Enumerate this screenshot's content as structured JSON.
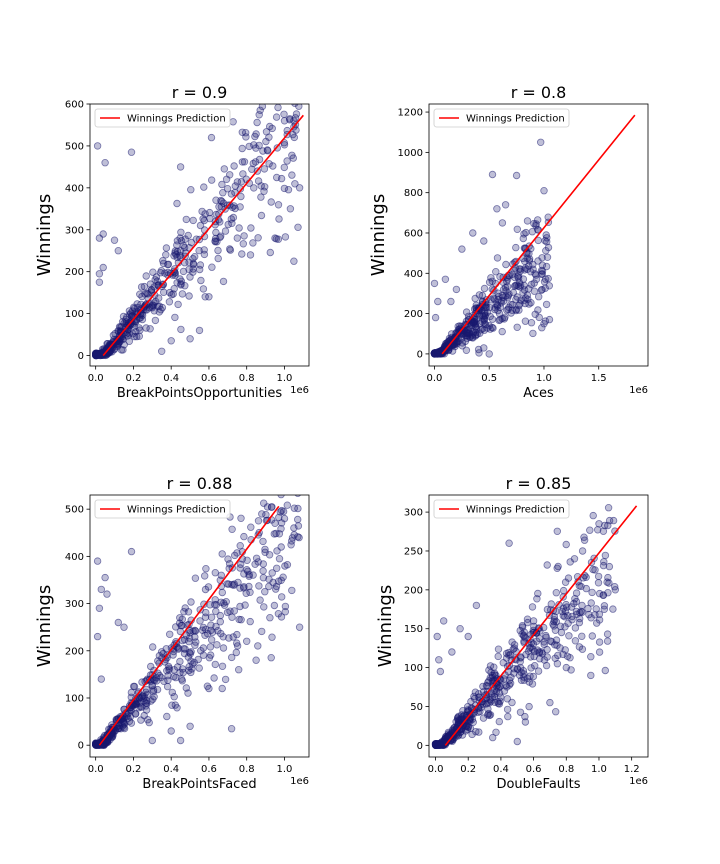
{
  "chart_data": [
    {
      "type": "scatter",
      "title": "r = 0.9",
      "xlabel": "BreakPointsOpportunities",
      "ylabel": "Winnings",
      "x_offset_label": "1e6",
      "xlim": [
        -0.03,
        1.13
      ],
      "ylim": [
        -25,
        600
      ],
      "xticks": [
        0.0,
        0.2,
        0.4,
        0.6,
        0.8,
        1.0
      ],
      "yticks": [
        0,
        100,
        200,
        300,
        400,
        500,
        600
      ],
      "xtick_labels": [
        "0.0",
        "0.2",
        "0.4",
        "0.6",
        "0.8",
        "1.0"
      ],
      "ytick_labels": [
        "0",
        "100",
        "200",
        "300",
        "400",
        "500",
        "600"
      ],
      "grid": false,
      "legend": {
        "position": "upper-left",
        "entries": [
          "Winnings Prediction"
        ]
      },
      "series": [
        {
          "name": "Winnings Prediction",
          "kind": "line",
          "color": "#ff0000",
          "x": [
            0.04,
            1.1
          ],
          "y": [
            0,
            573
          ]
        },
        {
          "kind": "scatter",
          "color": "#191970",
          "slope": 540,
          "intercept": -21.6,
          "noise": 0.22,
          "count": 560,
          "xmax": 1.08,
          "ymin": 0,
          "outliers": [
            [
              0.01,
              500
            ],
            [
              0.05,
              460
            ],
            [
              0.04,
              290
            ],
            [
              0.02,
              280
            ],
            [
              0.19,
              485
            ],
            [
              0.04,
              210
            ],
            [
              0.02,
              195
            ],
            [
              0.02,
              175
            ],
            [
              0.1,
              275
            ],
            [
              0.12,
              250
            ],
            [
              0.35,
              10
            ],
            [
              0.4,
              35
            ],
            [
              0.55,
              60
            ],
            [
              0.6,
              140
            ],
            [
              0.58,
              140
            ],
            [
              0.82,
              240
            ],
            [
              1.05,
              225
            ],
            [
              1.08,
              400
            ],
            [
              1.0,
              560
            ],
            [
              1.05,
              560
            ],
            [
              0.95,
              280
            ],
            [
              0.75,
              280
            ],
            [
              0.3,
              120
            ],
            [
              0.5,
              40
            ],
            [
              0.45,
              450
            ]
          ]
        }
      ]
    },
    {
      "type": "scatter",
      "title": "r = 0.8",
      "xlabel": "Aces",
      "ylabel": "Winnings",
      "x_offset_label": "1e6",
      "xlim": [
        -0.05,
        1.95
      ],
      "ylim": [
        -60,
        1240
      ],
      "xticks": [
        0.0,
        0.5,
        1.0,
        1.5
      ],
      "yticks": [
        0,
        200,
        400,
        600,
        800,
        1000,
        1200
      ],
      "xtick_labels": [
        "0.0",
        "0.5",
        "1.0",
        "1.5"
      ],
      "ytick_labels": [
        "0",
        "200",
        "400",
        "600",
        "800",
        "1000",
        "1200"
      ],
      "grid": false,
      "legend": {
        "position": "upper-left",
        "entries": [
          "Winnings Prediction"
        ]
      },
      "series": [
        {
          "name": "Winnings Prediction",
          "kind": "line",
          "color": "#ff0000",
          "x": [
            0.07,
            1.83
          ],
          "y": [
            0,
            1185
          ]
        },
        {
          "kind": "scatter",
          "color": "#191970",
          "slope": 480,
          "intercept": -20,
          "noise": 0.3,
          "count": 560,
          "xmax": 1.05,
          "ymin": 0,
          "outliers": [
            [
              0.53,
              890
            ],
            [
              0.75,
              885
            ],
            [
              0.97,
              1050
            ],
            [
              1.0,
              810
            ],
            [
              0.65,
              740
            ],
            [
              0.45,
              560
            ],
            [
              0.35,
              600
            ],
            [
              0.25,
              520
            ],
            [
              0.0,
              350
            ],
            [
              0.03,
              260
            ],
            [
              0.01,
              180
            ],
            [
              0.1,
              370
            ],
            [
              0.2,
              320
            ],
            [
              0.15,
              260
            ],
            [
              0.45,
              30
            ],
            [
              0.5,
              0
            ],
            [
              0.98,
              130
            ],
            [
              1.0,
              150
            ],
            [
              1.05,
              170
            ],
            [
              0.9,
              420
            ],
            [
              0.62,
              650
            ],
            [
              0.57,
              720
            ],
            [
              0.85,
              660
            ],
            [
              1.02,
              590
            ]
          ]
        }
      ]
    },
    {
      "type": "scatter",
      "title": "r = 0.88",
      "xlabel": "BreakPointsFaced",
      "ylabel": "Winnings",
      "x_offset_label": "1e6",
      "xlim": [
        -0.03,
        1.13
      ],
      "ylim": [
        -25,
        530
      ],
      "xticks": [
        0.0,
        0.2,
        0.4,
        0.6,
        0.8,
        1.0
      ],
      "yticks": [
        0,
        100,
        200,
        300,
        400,
        500
      ],
      "xtick_labels": [
        "0.0",
        "0.2",
        "0.4",
        "0.6",
        "0.8",
        "1.0"
      ],
      "ytick_labels": [
        "0",
        "100",
        "200",
        "300",
        "400",
        "500"
      ],
      "grid": false,
      "legend": {
        "position": "upper-left",
        "entries": [
          "Winnings Prediction"
        ]
      },
      "series": [
        {
          "name": "Winnings Prediction",
          "kind": "line",
          "color": "#ff0000",
          "x": [
            0.02,
            0.97
          ],
          "y": [
            0,
            506
          ]
        },
        {
          "kind": "scatter",
          "color": "#191970",
          "slope": 470,
          "intercept": -14,
          "noise": 0.23,
          "count": 560,
          "xmax": 1.08,
          "ymin": 0,
          "outliers": [
            [
              0.01,
              390
            ],
            [
              0.05,
              355
            ],
            [
              0.03,
              330
            ],
            [
              0.06,
              320
            ],
            [
              0.02,
              290
            ],
            [
              0.01,
              230
            ],
            [
              0.03,
              140
            ],
            [
              0.19,
              410
            ],
            [
              0.12,
              260
            ],
            [
              0.15,
              250
            ],
            [
              0.3,
              10
            ],
            [
              0.4,
              30
            ],
            [
              0.45,
              10
            ],
            [
              0.6,
              120
            ],
            [
              0.67,
              120
            ],
            [
              0.72,
              35
            ],
            [
              0.88,
              490
            ],
            [
              0.95,
              470
            ],
            [
              1.0,
              480
            ],
            [
              1.05,
              460
            ],
            [
              1.08,
              250
            ],
            [
              0.85,
              180
            ],
            [
              0.8,
              220
            ],
            [
              0.5,
              40
            ]
          ]
        }
      ]
    },
    {
      "type": "scatter",
      "title": "r = 0.85",
      "xlabel": "DoubleFaults",
      "ylabel": "Winnings",
      "x_offset_label": "1e6",
      "xlim": [
        -0.04,
        1.3
      ],
      "ylim": [
        -15,
        322
      ],
      "xticks": [
        0.0,
        0.2,
        0.4,
        0.6,
        0.8,
        1.0,
        1.2
      ],
      "yticks": [
        0,
        50,
        100,
        150,
        200,
        250,
        300
      ],
      "xtick_labels": [
        "0.0",
        "0.2",
        "0.4",
        "0.6",
        "0.8",
        "1.0",
        "1.2"
      ],
      "ytick_labels": [
        "0",
        "50",
        "100",
        "150",
        "200",
        "250",
        "300"
      ],
      "grid": false,
      "legend": {
        "position": "upper-left",
        "entries": [
          "Winnings Prediction"
        ]
      },
      "series": [
        {
          "name": "Winnings Prediction",
          "kind": "line",
          "color": "#ff0000",
          "x": [
            0.06,
            1.23
          ],
          "y": [
            0,
            308
          ]
        },
        {
          "kind": "scatter",
          "color": "#191970",
          "slope": 220,
          "intercept": -8,
          "noise": 0.26,
          "count": 560,
          "xmax": 1.1,
          "ymin": 0,
          "outliers": [
            [
              0.01,
              140
            ],
            [
              0.05,
              160
            ],
            [
              0.02,
              110
            ],
            [
              0.03,
              95
            ],
            [
              0.1,
              120
            ],
            [
              0.15,
              150
            ],
            [
              0.2,
              140
            ],
            [
              0.25,
              180
            ],
            [
              0.35,
              10
            ],
            [
              0.45,
              260
            ],
            [
              0.5,
              5
            ],
            [
              0.55,
              30
            ],
            [
              0.6,
              160
            ],
            [
              0.65,
              120
            ],
            [
              0.7,
              55
            ],
            [
              0.8,
              100
            ],
            [
              0.9,
              250
            ],
            [
              0.95,
              90
            ],
            [
              1.0,
              285
            ],
            [
              1.05,
              210
            ],
            [
              1.1,
              200
            ],
            [
              0.85,
              240
            ],
            [
              0.75,
              230
            ]
          ]
        }
      ]
    }
  ]
}
